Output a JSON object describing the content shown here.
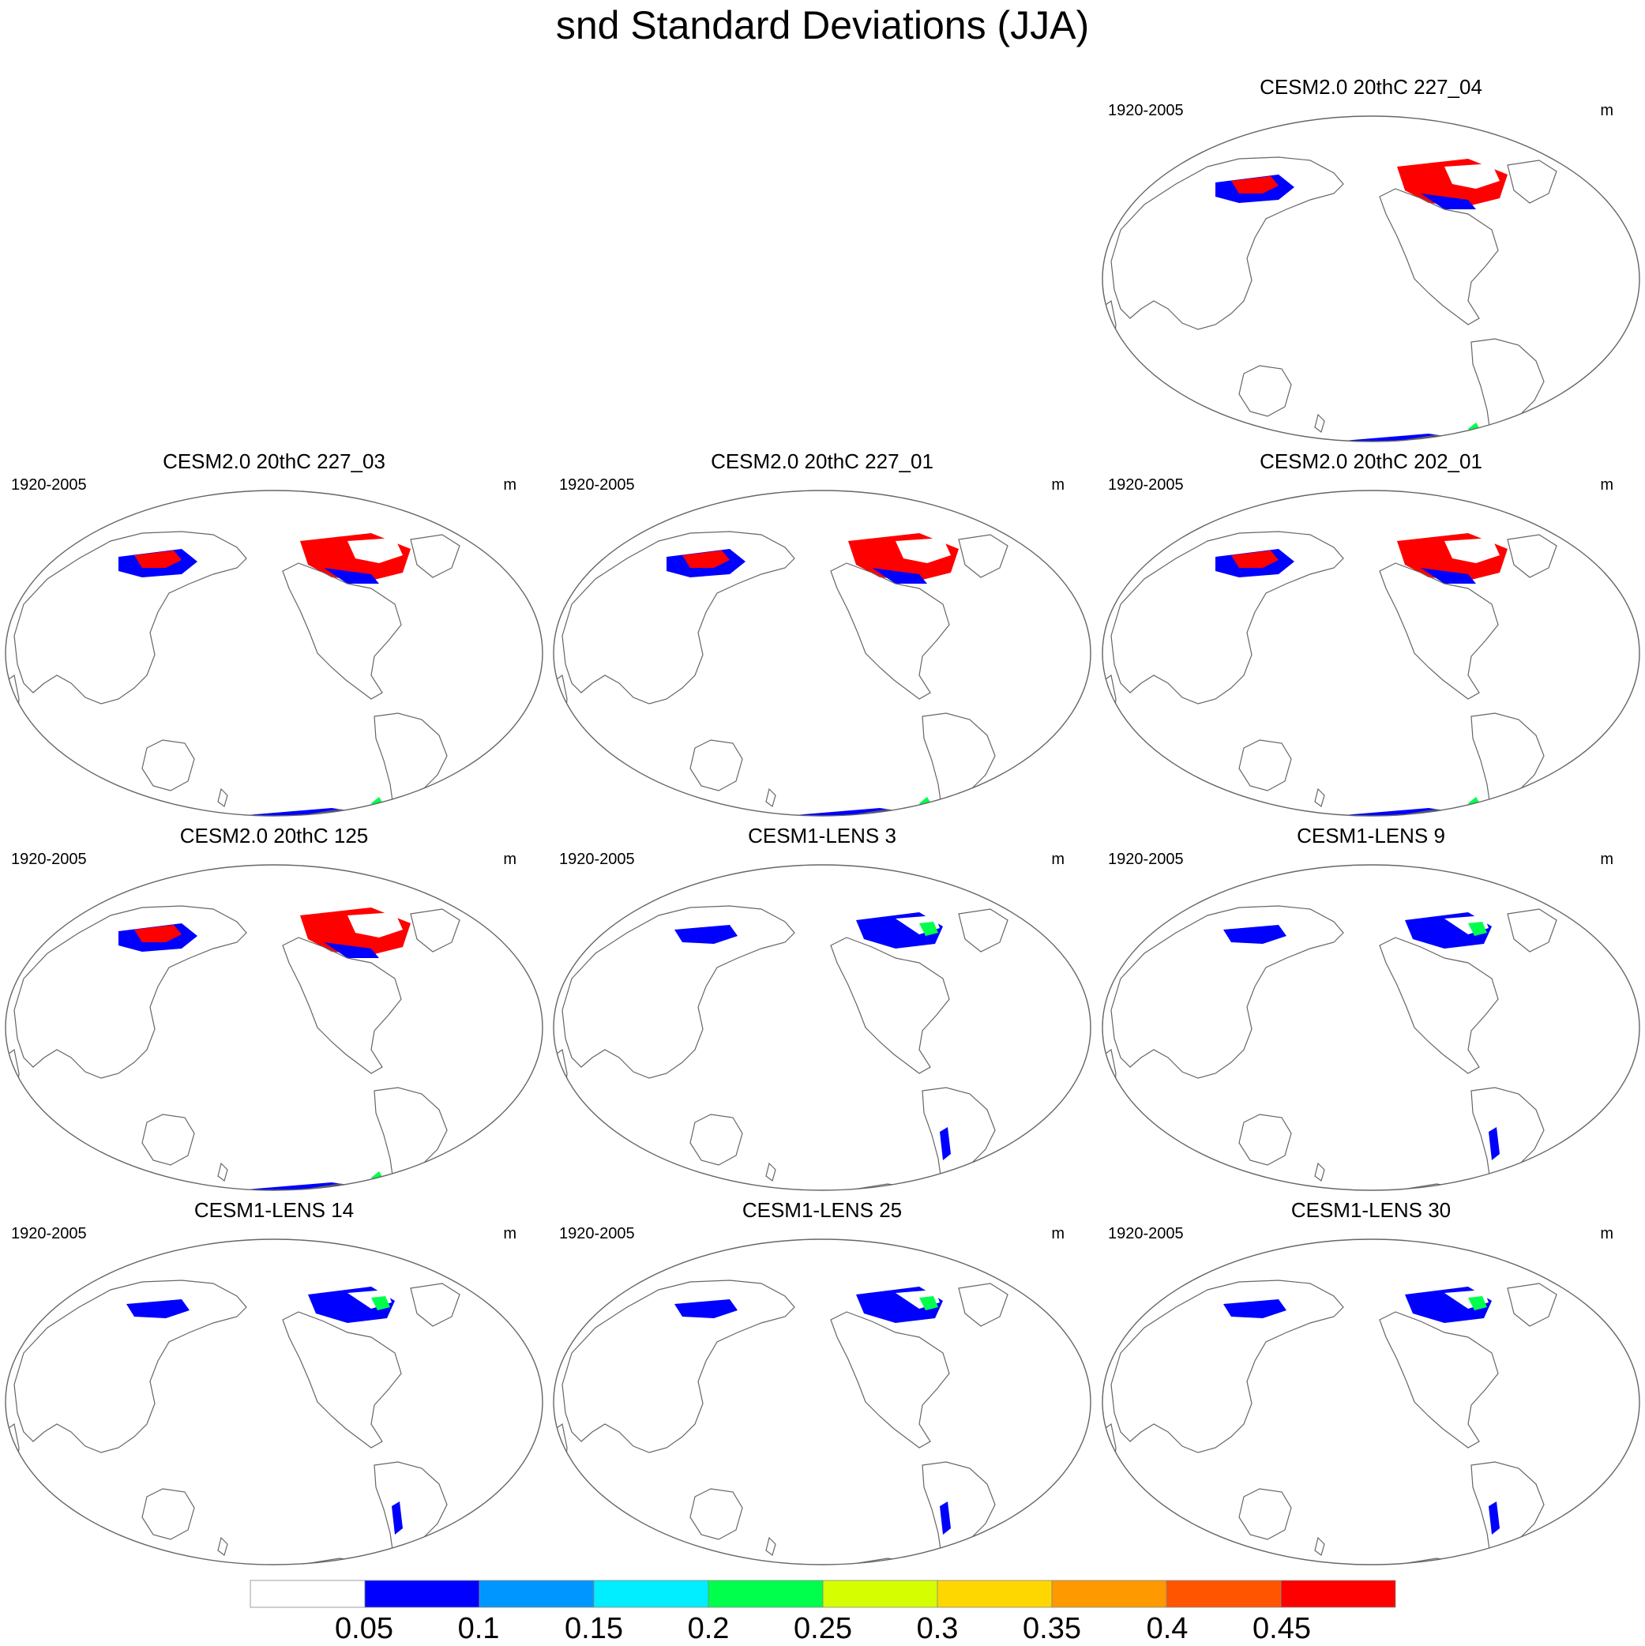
{
  "title": "snd Standard Deviations (JJA)",
  "panels": [
    {
      "title": "CESM2.0 20thC 227_04",
      "period": "1920-2005",
      "units": "m",
      "intensity": "high"
    },
    {
      "title": "CESM2.0 20thC 227_03",
      "period": "1920-2005",
      "units": "m",
      "intensity": "high"
    },
    {
      "title": "CESM2.0 20thC 227_01",
      "period": "1920-2005",
      "units": "m",
      "intensity": "high"
    },
    {
      "title": "CESM2.0 20thC 202_01",
      "period": "1920-2005",
      "units": "m",
      "intensity": "high"
    },
    {
      "title": "CESM2.0 20thC 125",
      "period": "1920-2005",
      "units": "m",
      "intensity": "high"
    },
    {
      "title": "CESM1-LENS 3",
      "period": "1920-2005",
      "units": "m",
      "intensity": "low"
    },
    {
      "title": "CESM1-LENS 9",
      "period": "1920-2005",
      "units": "m",
      "intensity": "low"
    },
    {
      "title": "CESM1-LENS 14",
      "period": "1920-2005",
      "units": "m",
      "intensity": "low"
    },
    {
      "title": "CESM1-LENS 25",
      "period": "1920-2005",
      "units": "m",
      "intensity": "low"
    },
    {
      "title": "CESM1-LENS 30",
      "period": "1920-2005",
      "units": "m",
      "intensity": "low"
    }
  ],
  "colorbar": {
    "labels": [
      "0.05",
      "0.1",
      "0.15",
      "0.2",
      "0.25",
      "0.3",
      "0.35",
      "0.4",
      "0.45"
    ],
    "colors": [
      "#ffffff",
      "#0000ff",
      "#0096ff",
      "#00eeff",
      "#00ff4d",
      "#d5ff00",
      "#ffd700",
      "#ff9900",
      "#ff5500",
      "#ff0000"
    ]
  }
}
